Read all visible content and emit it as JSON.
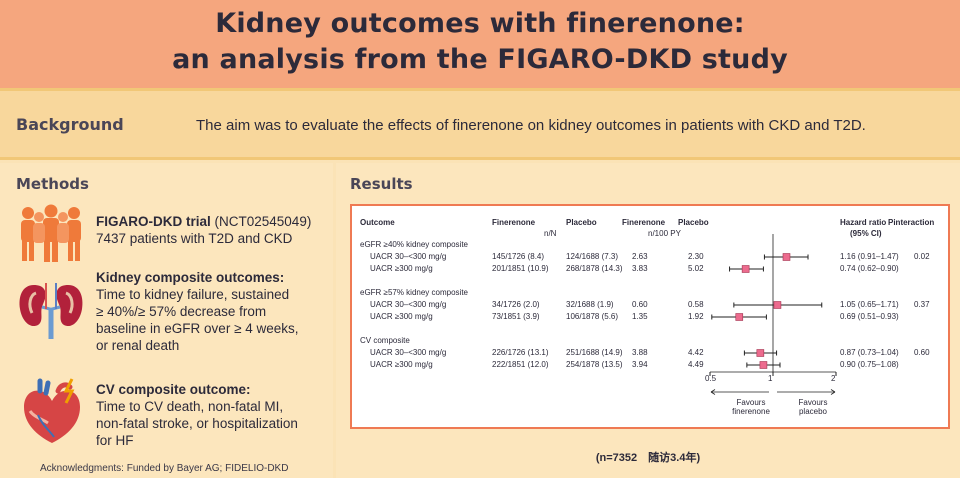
{
  "header": {
    "title_line1": "Kidney outcomes with finerenone:",
    "title_line2": "an analysis from the FIGARO-DKD study"
  },
  "background": {
    "label": "Background",
    "text": "The aim was to evaluate the effects of finerenone on kidney outcomes in patients with CKD and T2D."
  },
  "methods": {
    "title": "Methods",
    "trial_name": "FIGARO-DKD trial",
    "trial_id": "(NCT02545049)",
    "trial_patients": "7437 patients with T2D and CKD",
    "kidney_heading": "Kidney composite outcomes:",
    "kidney_lines": [
      "Time to kidney failure, sustained",
      "≥ 40%/≥ 57% decrease from",
      "baseline in eGFR over ≥ 4 weeks,",
      "or renal death"
    ],
    "cv_heading": "CV composite outcome:",
    "cv_lines": [
      "Time to CV death, non-fatal MI,",
      "non-fatal stroke, or hospitalization",
      "for HF"
    ],
    "acknowledgments": "Acknowledgments: Funded by Bayer AG; FIDELIO-DKD",
    "icons": [
      "people-group-icon",
      "kidneys-icon",
      "heart-icon"
    ]
  },
  "results": {
    "title": "Results",
    "footnote": "(n=7352　随访3.4年)",
    "table_headers": {
      "outcome": "Outcome",
      "finerenone": "Finerenone",
      "placebo": "Placebo",
      "finerenone2": "Finerenone",
      "placebo2": "Placebo",
      "nn": "n/N",
      "per100": "n/100 PY",
      "hr": "Hazard ratio",
      "ci": "(95% CI)",
      "pint": "Pinteraction"
    },
    "axis": {
      "ticks": [
        "0.5",
        "1",
        "2"
      ],
      "favours_left": [
        "Favours",
        "finerenone"
      ],
      "favours_right": [
        "Favours",
        "placebo"
      ]
    },
    "colors": {
      "marker": "#ec6b8e",
      "border": "#ef7a53"
    }
  },
  "chart_data": {
    "type": "forest",
    "x_scale": "log",
    "xlim": [
      0.5,
      2
    ],
    "groups": [
      {
        "name": "eGFR ≥40% kidney composite",
        "rows": [
          {
            "label": "UACR 30–<300 mg/g",
            "fin_nN": "145/1726 (8.4)",
            "pbo_nN": "124/1688 (7.3)",
            "fin_rate": "2.63",
            "pbo_rate": "2.30",
            "hr": 1.16,
            "lo": 0.91,
            "hi": 1.47,
            "hr_text": "1.16 (0.91–1.47)",
            "p": "0.02"
          },
          {
            "label": "UACR ≥300 mg/g",
            "fin_nN": "201/1851 (10.9)",
            "pbo_nN": "268/1878 (14.3)",
            "fin_rate": "3.83",
            "pbo_rate": "5.02",
            "hr": 0.74,
            "lo": 0.62,
            "hi": 0.9,
            "hr_text": "0.74 (0.62–0.90)",
            "p": ""
          }
        ]
      },
      {
        "name": "eGFR ≥57% kidney composite",
        "rows": [
          {
            "label": "UACR 30–<300 mg/g",
            "fin_nN": "34/1726 (2.0)",
            "pbo_nN": "32/1688 (1.9)",
            "fin_rate": "0.60",
            "pbo_rate": "0.58",
            "hr": 1.05,
            "lo": 0.65,
            "hi": 1.71,
            "hr_text": "1.05 (0.65–1.71)",
            "p": "0.37"
          },
          {
            "label": "UACR ≥300 mg/g",
            "fin_nN": "73/1851 (3.9)",
            "pbo_nN": "106/1878 (5.6)",
            "fin_rate": "1.35",
            "pbo_rate": "1.92",
            "hr": 0.69,
            "lo": 0.51,
            "hi": 0.93,
            "hr_text": "0.69 (0.51–0.93)",
            "p": ""
          }
        ]
      },
      {
        "name": "CV composite",
        "rows": [
          {
            "label": "UACR 30–<300 mg/g",
            "fin_nN": "226/1726 (13.1)",
            "pbo_nN": "251/1688 (14.9)",
            "fin_rate": "3.88",
            "pbo_rate": "4.42",
            "hr": 0.87,
            "lo": 0.73,
            "hi": 1.04,
            "hr_text": "0.87 (0.73–1.04)",
            "p": "0.60"
          },
          {
            "label": "UACR ≥300 mg/g",
            "fin_nN": "222/1851 (12.0)",
            "pbo_nN": "254/1878 (13.5)",
            "fin_rate": "3.94",
            "pbo_rate": "4.49",
            "hr": 0.9,
            "lo": 0.75,
            "hi": 1.08,
            "hr_text": "0.90 (0.75–1.08)",
            "p": ""
          }
        ]
      }
    ]
  }
}
